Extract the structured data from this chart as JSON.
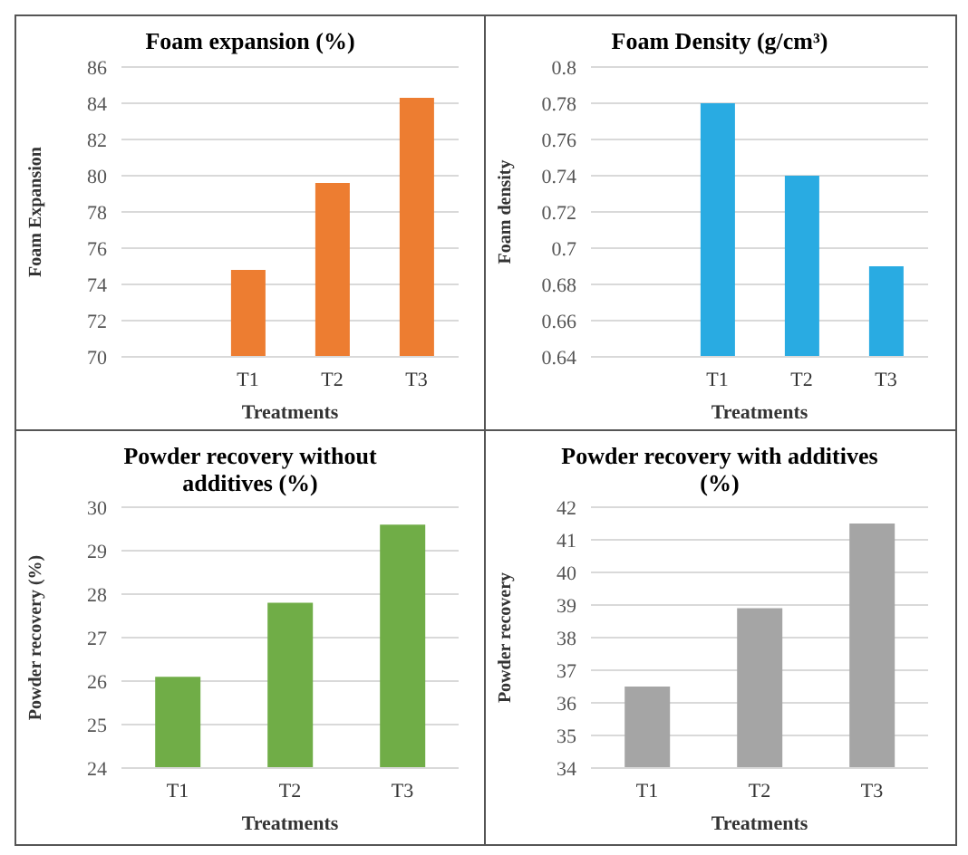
{
  "chart_data": [
    {
      "type": "bar",
      "title": "Foam expansion (%)",
      "xlabel": "Treatments",
      "ylabel": "Foam Expansion",
      "categories": [
        null,
        "T1",
        "T2",
        "T3"
      ],
      "values": [
        null,
        74.8,
        79.6,
        84.3
      ],
      "color": "#ed7d31",
      "ylim": [
        70,
        86
      ],
      "yticks": [
        70,
        72,
        74,
        76,
        78,
        80,
        82,
        84,
        86
      ],
      "grid": "y"
    },
    {
      "type": "bar",
      "title": "Foam Density (g/cm³)",
      "xlabel": "Treatments",
      "ylabel": "Foam density",
      "categories": [
        null,
        "T1",
        "T2",
        "T3"
      ],
      "values": [
        null,
        0.78,
        0.74,
        0.69
      ],
      "color": "#29abe2",
      "ylim": [
        0.64,
        0.8
      ],
      "yticks": [
        0.64,
        0.66,
        0.68,
        0.7,
        0.72,
        0.74,
        0.76,
        0.78,
        0.8
      ],
      "grid": "y"
    },
    {
      "type": "bar",
      "title": "Powder recovery  without additives (%)",
      "xlabel": "Treatments",
      "ylabel": "Powder recovery (%)",
      "categories": [
        "T1",
        "T2",
        "T3"
      ],
      "values": [
        26.1,
        27.8,
        29.6
      ],
      "color": "#70ad47",
      "ylim": [
        24,
        30
      ],
      "yticks": [
        24,
        25,
        26,
        27,
        28,
        29,
        30
      ],
      "grid": "y"
    },
    {
      "type": "bar",
      "title": "Powder recovery with additives (%)",
      "xlabel": "Treatments",
      "ylabel": "Powder recovery",
      "categories": [
        "T1",
        "T2",
        "T3"
      ],
      "values": [
        36.5,
        38.9,
        41.5
      ],
      "color": "#a5a5a5",
      "ylim": [
        34,
        42
      ],
      "yticks": [
        34,
        35,
        36,
        37,
        38,
        39,
        40,
        41,
        42
      ],
      "grid": "y"
    }
  ]
}
